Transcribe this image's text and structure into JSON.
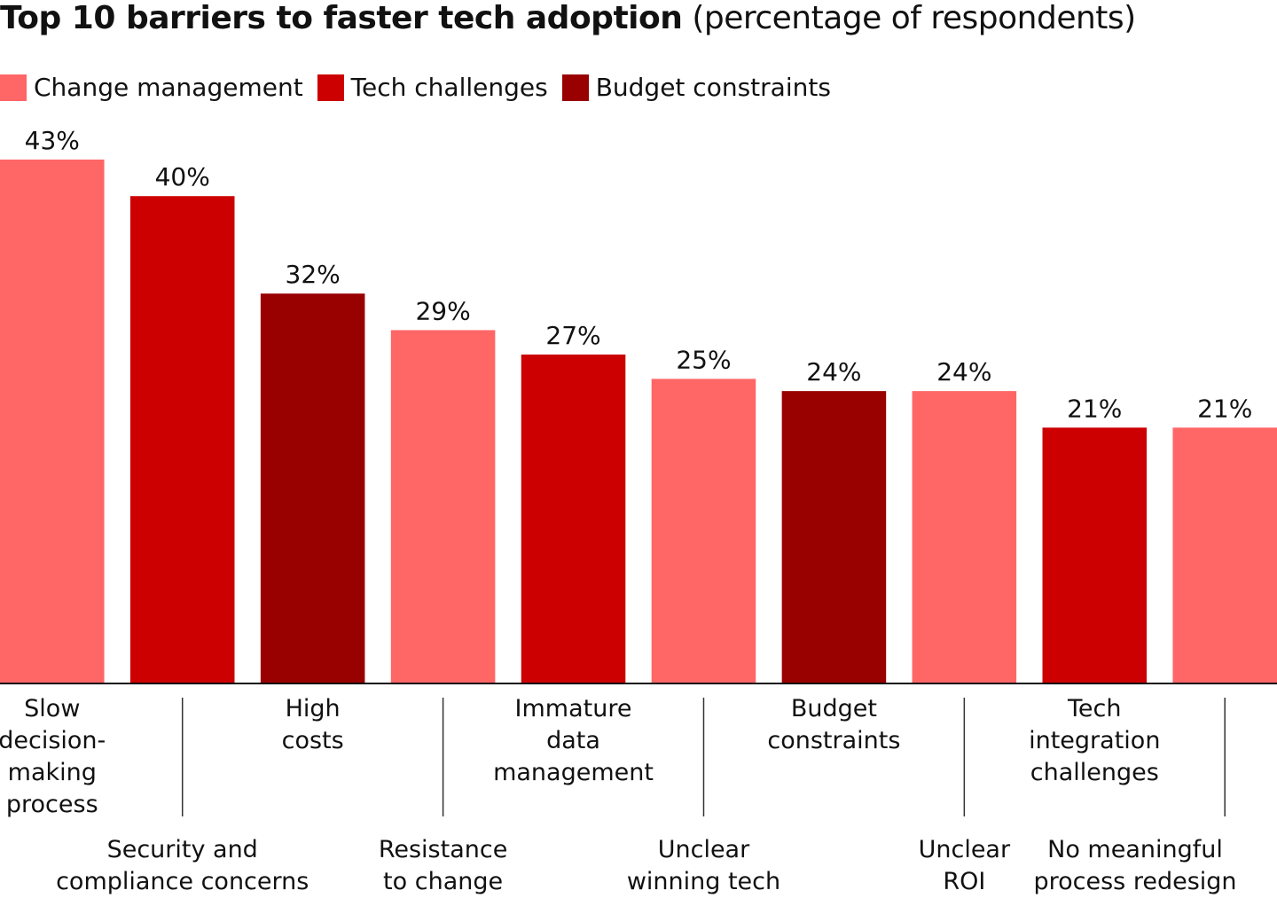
{
  "chart_data": {
    "type": "bar",
    "title": "Top 10 barriers to faster tech adoption",
    "subtitle": "(percentage of respondents)",
    "categories": [
      "Slow\ndecision-\nmaking\nprocess",
      "Security and\ncompliance concerns",
      "High\ncosts",
      "Resistance\nto change",
      "Immature\ndata\nmanagement",
      "Unclear\nwinning tech",
      "Budget\nconstraints",
      "Unclear\nROI",
      "Tech\nintegration\nchallenges",
      "No meaningful\nprocess redesign"
    ],
    "series": [
      {
        "name": "Change management",
        "color": "#ff6666",
        "values": [
          43,
          null,
          null,
          29,
          null,
          25,
          null,
          24,
          null,
          21
        ],
        "value_labels": [
          "43%",
          null,
          null,
          "29%",
          null,
          "25%",
          null,
          "24%",
          null,
          "21%"
        ]
      },
      {
        "name": "Tech challenges",
        "color": "#cc0000",
        "values": [
          null,
          40,
          null,
          null,
          27,
          null,
          null,
          null,
          21,
          null
        ],
        "value_labels": [
          null,
          "40%",
          null,
          null,
          "27%",
          null,
          null,
          null,
          "21%",
          null
        ]
      },
      {
        "name": "Budget constraints",
        "color": "#990000",
        "values": [
          null,
          null,
          32,
          null,
          null,
          null,
          24,
          null,
          null,
          null
        ],
        "value_labels": [
          null,
          null,
          "32%",
          null,
          null,
          null,
          "24%",
          null,
          null,
          null
        ]
      }
    ]
  }
}
